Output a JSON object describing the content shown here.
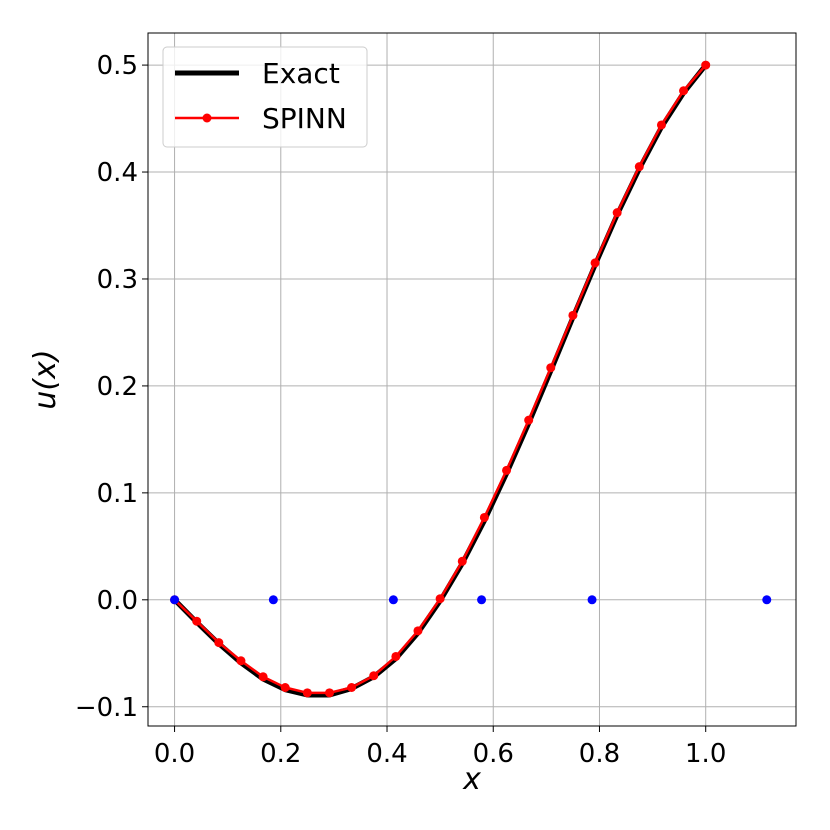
{
  "chart_data": {
    "type": "line",
    "xlabel": "x",
    "ylabel": "u(x)",
    "xlim": [
      -0.05,
      1.17
    ],
    "ylim": [
      -0.118,
      0.53
    ],
    "xticks": [
      0.0,
      0.2,
      0.4,
      0.6,
      0.8,
      1.0
    ],
    "yticks": [
      -0.1,
      0.0,
      0.1,
      0.2,
      0.3,
      0.4,
      0.5
    ],
    "xtick_labels": [
      "0.0",
      "0.2",
      "0.4",
      "0.6",
      "0.8",
      "1.0"
    ],
    "ytick_labels": [
      "−0.1",
      "0.0",
      "0.1",
      "0.2",
      "0.3",
      "0.4",
      "0.5"
    ],
    "grid": true,
    "legend": {
      "placement": "top-left",
      "entries": [
        "Exact",
        "SPINN"
      ]
    },
    "series": [
      {
        "name": "Exact",
        "color": "#000000",
        "style": "line",
        "x": [
          0.0,
          0.0417,
          0.0833,
          0.125,
          0.1667,
          0.2083,
          0.25,
          0.2917,
          0.3333,
          0.375,
          0.4167,
          0.4583,
          0.5,
          0.5417,
          0.5833,
          0.625,
          0.6667,
          0.7083,
          0.75,
          0.7917,
          0.8333,
          0.875,
          0.9167,
          0.9583,
          1.0
        ],
        "y": [
          0.0,
          -0.021,
          -0.041,
          -0.059,
          -0.074,
          -0.084,
          -0.089,
          -0.089,
          -0.083,
          -0.072,
          -0.055,
          -0.031,
          -0.001,
          0.034,
          0.074,
          0.118,
          0.165,
          0.214,
          0.264,
          0.313,
          0.36,
          0.403,
          0.442,
          0.474,
          0.5
        ]
      },
      {
        "name": "SPINN",
        "color": "#ff0000",
        "style": "line-marker",
        "x": [
          0.0,
          0.0417,
          0.0833,
          0.125,
          0.1667,
          0.2083,
          0.25,
          0.2917,
          0.3333,
          0.375,
          0.4167,
          0.4583,
          0.5,
          0.5417,
          0.5833,
          0.625,
          0.6667,
          0.7083,
          0.75,
          0.7917,
          0.8333,
          0.875,
          0.9167,
          0.9583,
          1.0
        ],
        "y": [
          0.0,
          -0.02,
          -0.04,
          -0.057,
          -0.072,
          -0.082,
          -0.087,
          -0.087,
          -0.082,
          -0.071,
          -0.053,
          -0.029,
          0.001,
          0.036,
          0.077,
          0.121,
          0.168,
          0.217,
          0.266,
          0.315,
          0.362,
          0.405,
          0.444,
          0.476,
          0.5
        ]
      },
      {
        "color": "#0000ff",
        "style": "scatter",
        "x": [
          0.0,
          0.186,
          0.412,
          0.578,
          0.786,
          1.115
        ],
        "y": [
          0.0,
          0.0,
          0.0,
          0.0,
          0.0,
          0.0
        ]
      }
    ]
  }
}
